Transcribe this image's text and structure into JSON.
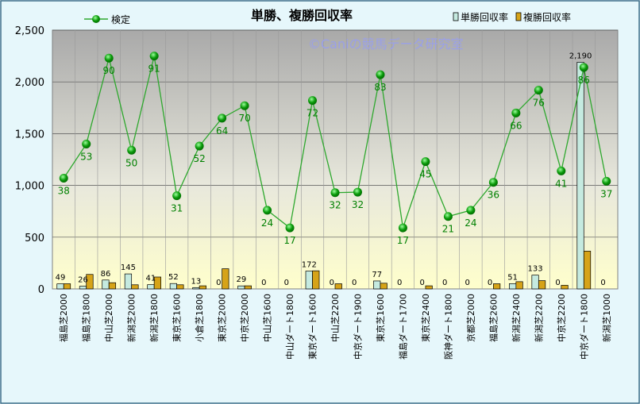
{
  "chart_data": {
    "type": "bar",
    "title": "単勝、複勝回収率",
    "watermark": "©Caniの競馬データ研究室",
    "categories": [
      "福島芝2000",
      "福島芝1800",
      "中山芝2000",
      "新潟芝2000",
      "新潟芝1800",
      "東京芝1600",
      "小倉芝1800",
      "東京芝2000",
      "中京芝2000",
      "中山芝1600",
      "中山ダート1800",
      "東京ダート1600",
      "中山芝2200",
      "中京ダート1900",
      "東京芝1600",
      "福島ダート1700",
      "東京芝2400",
      "阪神ダート1800",
      "京都芝2000",
      "福島芝2600",
      "新潟芝2400",
      "新潟芝2200",
      "中京芝2200",
      "中京ダート1800",
      "新潟芝1000"
    ],
    "ylim": [
      0,
      2500
    ],
    "yticks": [
      "0",
      "500",
      "1,000",
      "1,500",
      "2,000",
      "2,500"
    ],
    "grid": true,
    "legend_position": "top",
    "series": [
      {
        "name": "単勝回収率",
        "type": "bar",
        "color": "#c5eae0",
        "values": [
          49,
          26,
          86,
          145,
          41,
          52,
          13,
          0,
          29,
          0,
          0,
          172,
          0,
          0,
          77,
          0,
          0,
          0,
          0,
          0,
          51,
          133,
          0,
          2190,
          0
        ],
        "labels": [
          "49",
          "26",
          "86",
          "145",
          "41",
          "52",
          "13",
          "0",
          "29",
          "0",
          "0",
          "172",
          "0",
          "0",
          "77",
          "0",
          "0",
          "0",
          "0",
          "0",
          "51",
          "133",
          "0",
          "2,190",
          "0"
        ]
      },
      {
        "name": "複勝回収率",
        "type": "bar",
        "color": "#d6a318",
        "values": [
          50,
          140,
          60,
          40,
          115,
          40,
          30,
          195,
          30,
          0,
          0,
          175,
          50,
          0,
          55,
          0,
          30,
          0,
          0,
          50,
          70,
          80,
          35,
          365,
          0
        ]
      },
      {
        "name": "検定",
        "type": "line",
        "color": "#2ea82e",
        "values": [
          1070,
          1400,
          2230,
          1340,
          2250,
          900,
          1380,
          1650,
          1770,
          760,
          590,
          1820,
          930,
          935,
          2070,
          590,
          1230,
          700,
          760,
          1030,
          1700,
          1920,
          1140,
          2140,
          1040
        ],
        "labels": [
          "38",
          "53",
          "90",
          "50",
          "91",
          "31",
          "52",
          "64",
          "70",
          "24",
          "17",
          "72",
          "32",
          "32",
          "83",
          "17",
          "45",
          "21",
          "24",
          "36",
          "66",
          "76",
          "41",
          "86",
          "37"
        ]
      }
    ]
  }
}
